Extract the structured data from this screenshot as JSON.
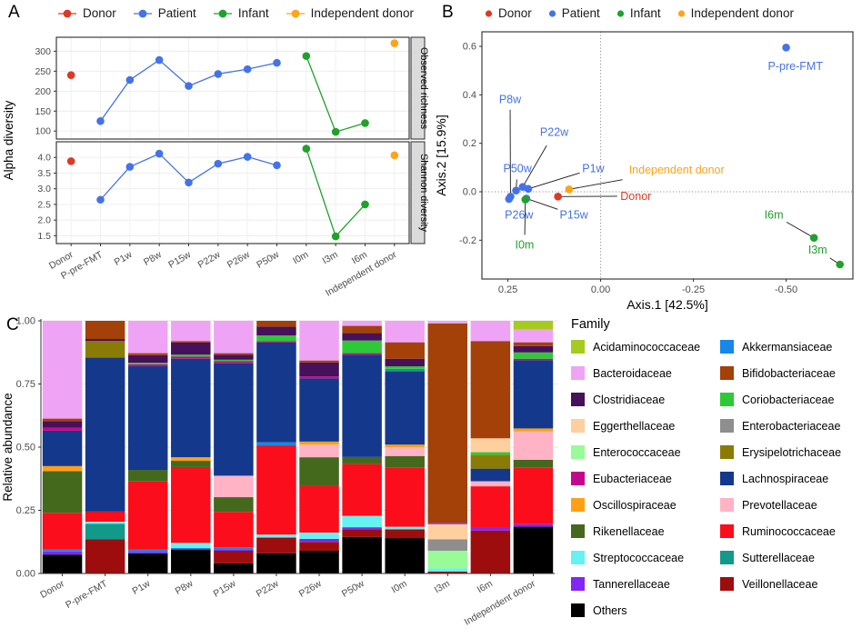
{
  "panels": {
    "a_label": "A",
    "b_label": "B",
    "c_label": "C"
  },
  "group_legend": {
    "items": [
      {
        "id": "donor",
        "label": "Donor",
        "color": "#DC3A23"
      },
      {
        "id": "patient",
        "label": "Patient",
        "color": "#4472E8"
      },
      {
        "id": "infant",
        "label": "Infant",
        "color": "#1FA22B"
      },
      {
        "id": "independent",
        "label": "Independent donor",
        "color": "#FFA317"
      }
    ]
  },
  "chart_data": [
    {
      "id": "alpha_diversity",
      "type": "line",
      "ylabel": "Alpha diversity",
      "categories": [
        "Donor",
        "P-pre-FMT",
        "P1w",
        "P8w",
        "P15w",
        "P22w",
        "P26w",
        "P50w",
        "I0m",
        "I3m",
        "I6m",
        "Independent donor"
      ],
      "groups": [
        "donor",
        "patient",
        "patient",
        "patient",
        "patient",
        "patient",
        "patient",
        "patient",
        "infant",
        "infant",
        "infant",
        "independent"
      ],
      "connect": [
        [
          1,
          7
        ],
        [
          8,
          10
        ]
      ],
      "facets": [
        {
          "label": "Observed richness",
          "ylim": [
            80,
            335
          ],
          "yticks": [
            100,
            150,
            200,
            250,
            300
          ],
          "ytick_labels": [
            "100",
            "150",
            "200",
            "250",
            "300"
          ],
          "values": [
            240,
            125,
            228,
            278,
            213,
            243,
            255,
            271,
            288,
            98,
            120,
            320
          ]
        },
        {
          "label": "Shannon diversity",
          "ylim": [
            1.25,
            4.5
          ],
          "yticks": [
            1.5,
            2.0,
            2.5,
            3.0,
            3.5,
            4.0
          ],
          "ytick_labels": [
            "1.5",
            "2.0",
            "2.5",
            "3.0",
            "3.5",
            "4.0"
          ],
          "values": [
            3.88,
            2.65,
            3.7,
            4.12,
            3.2,
            3.8,
            4.02,
            3.75,
            4.28,
            1.48,
            2.5,
            4.07
          ]
        }
      ]
    },
    {
      "id": "pcoa",
      "type": "scatter",
      "xlabel": "Axis.1 [42.5%]",
      "ylabel": "Axis.2 [15.9%]",
      "xlim": [
        0.32,
        -0.68
      ],
      "ylim": [
        -0.36,
        0.66
      ],
      "xticks": [
        0.25,
        0.0,
        -0.25,
        -0.5
      ],
      "xtick_labels": [
        "0.25",
        "0.00",
        "-0.25",
        "-0.50"
      ],
      "yticks": [
        -0.2,
        0.0,
        0.2,
        0.4,
        0.6
      ],
      "ytick_labels": [
        "-0.2",
        "0.0",
        "0.2",
        "0.4",
        "0.6"
      ],
      "refline_x": 0.0,
      "refline_y": 0.0,
      "points": [
        {
          "label": "Donor",
          "group": "donor",
          "x": 0.115,
          "y": -0.02,
          "tx": -0.095,
          "ty": -0.018
        },
        {
          "label": "P-pre-FMT",
          "group": "patient",
          "x": -0.5,
          "y": 0.595,
          "tx": -0.525,
          "ty": 0.517
        },
        {
          "label": "P1w",
          "group": "patient",
          "x": 0.195,
          "y": 0.012,
          "tx": 0.02,
          "ty": 0.095
        },
        {
          "label": "P8w",
          "group": "patient",
          "x": 0.243,
          "y": -0.02,
          "tx": 0.244,
          "ty": 0.38
        },
        {
          "label": "P15w",
          "group": "patient",
          "x": 0.2,
          "y": -0.028,
          "tx": 0.072,
          "ty": -0.095
        },
        {
          "label": "P22w",
          "group": "patient",
          "x": 0.21,
          "y": 0.02,
          "tx": 0.125,
          "ty": 0.245
        },
        {
          "label": "P26w",
          "group": "patient",
          "x": 0.247,
          "y": -0.03,
          "tx": 0.22,
          "ty": -0.095
        },
        {
          "label": "P50w",
          "group": "patient",
          "x": 0.228,
          "y": 0.005,
          "tx": 0.224,
          "ty": 0.095
        },
        {
          "label": "I0m",
          "group": "infant",
          "x": 0.203,
          "y": -0.032,
          "tx": 0.205,
          "ty": -0.22
        },
        {
          "label": "I3m",
          "group": "infant",
          "x": -0.645,
          "y": -0.3,
          "tx": -0.585,
          "ty": -0.24
        },
        {
          "label": "I6m",
          "group": "infant",
          "x": -0.575,
          "y": -0.19,
          "tx": -0.467,
          "ty": -0.095
        },
        {
          "label": "Independent donor",
          "group": "independent",
          "x": 0.085,
          "y": 0.01,
          "tx": -0.205,
          "ty": 0.09
        }
      ]
    },
    {
      "id": "relative_abundance",
      "type": "bar-stacked",
      "ylabel": "Relative abundance",
      "legend_title": "Family",
      "yticks": [
        0,
        0.25,
        0.5,
        0.75,
        1.0
      ],
      "ytick_labels": [
        "0.00",
        "0.25",
        "0.50",
        "0.75",
        "1.00"
      ],
      "categories": [
        "Donor",
        "P-pre-FMT",
        "P1w",
        "P8w",
        "P15w",
        "P22w",
        "P26w",
        "P50w",
        "I0m",
        "I3m",
        "I6m",
        "Independent donor"
      ],
      "families": [
        {
          "name": "Acidaminococcaceae",
          "color": "#A6CB1E"
        },
        {
          "name": "Akkermansiaceae",
          "color": "#1787E8"
        },
        {
          "name": "Bacteroidaceae",
          "color": "#EFA3F5"
        },
        {
          "name": "Bifidobacteriaceae",
          "color": "#A34108"
        },
        {
          "name": "Clostridiaceae",
          "color": "#46105A"
        },
        {
          "name": "Coriobacteriaceae",
          "color": "#2DC937"
        },
        {
          "name": "Eggerthellaceae",
          "color": "#FFCF9E"
        },
        {
          "name": "Enterobacteriaceae",
          "color": "#8E8E8E"
        },
        {
          "name": "Enterococcaceae",
          "color": "#98FB98"
        },
        {
          "name": "Erysipelotrichaceae",
          "color": "#8A7B06"
        },
        {
          "name": "Eubacteriaceae",
          "color": "#C4088E"
        },
        {
          "name": "Lachnospiraceae",
          "color": "#14388C"
        },
        {
          "name": "Oscillospiraceae",
          "color": "#FFA014"
        },
        {
          "name": "Prevotellaceae",
          "color": "#FFB3C4"
        },
        {
          "name": "Rikenellaceae",
          "color": "#44691D"
        },
        {
          "name": "Ruminococcaceae",
          "color": "#FB0D1B"
        },
        {
          "name": "Streptococcaceae",
          "color": "#64F2F2"
        },
        {
          "name": "Sutterellaceae",
          "color": "#12998A"
        },
        {
          "name": "Tannerellaceae",
          "color": "#8226F5"
        },
        {
          "name": "Veillonellaceae",
          "color": "#9E0D0D"
        },
        {
          "name": "Others",
          "color": "#000000"
        }
      ],
      "legend_columns": [
        [
          "Acidaminococcaceae",
          "Bacteroidaceae",
          "Clostridiaceae",
          "Eggerthellaceae",
          "Enterococcaceae",
          "Eubacteriaceae",
          "Oscillospiraceae",
          "Rikenellaceae",
          "Streptococcaceae",
          "Tannerellaceae",
          "Others"
        ],
        [
          "Akkermansiaceae",
          "Bifidobacteriaceae",
          "Coriobacteriaceae",
          "Enterobacteriaceae",
          "Erysipelotrichaceae",
          "Lachnospiraceae",
          "Prevotellaceae",
          "Ruminococcaceae",
          "Sutterellaceae",
          "Veillonellaceae"
        ]
      ],
      "bars": {
        "Donor": [
          [
            "Others",
            0.075
          ],
          [
            "Tannerellaceae",
            0.012
          ],
          [
            "Akkermansiaceae",
            0.008
          ],
          [
            "Ruminococcaceae",
            0.145
          ],
          [
            "Rikenellaceae",
            0.165
          ],
          [
            "Oscillospiraceae",
            0.02
          ],
          [
            "Lachnospiraceae",
            0.14
          ],
          [
            "Eubacteriaceae",
            0.012
          ],
          [
            "Clostridiaceae",
            0.026
          ],
          [
            "Bifidobacteriaceae",
            0.01
          ],
          [
            "Bacteroidaceae",
            0.387
          ]
        ],
        "P-pre-FMT": [
          [
            "Veillonellaceae",
            0.135
          ],
          [
            "Sutterellaceae",
            0.062
          ],
          [
            "Streptococcaceae",
            0.008
          ],
          [
            "Ruminococcaceae",
            0.04
          ],
          [
            "Lachnospiraceae",
            0.61
          ],
          [
            "Erysipelotrichaceae",
            0.065
          ],
          [
            "Clostridiaceae",
            0.008
          ],
          [
            "Bifidobacteriaceae",
            0.072
          ]
        ],
        "P1w": [
          [
            "Others",
            0.08
          ],
          [
            "Tannerellaceae",
            0.006
          ],
          [
            "Akkermansiaceae",
            0.008
          ],
          [
            "Ruminococcaceae",
            0.27
          ],
          [
            "Rikenellaceae",
            0.046
          ],
          [
            "Lachnospiraceae",
            0.41
          ],
          [
            "Eubacteriaceae",
            0.008
          ],
          [
            "Coriobacteriaceae",
            0.006
          ],
          [
            "Clostridiaceae",
            0.03
          ],
          [
            "Bifidobacteriaceae",
            0.008
          ],
          [
            "Bacteroidaceae",
            0.128
          ]
        ],
        "P8w": [
          [
            "Others",
            0.095
          ],
          [
            "Akkermansiaceae",
            0.006
          ],
          [
            "Streptococcaceae",
            0.02
          ],
          [
            "Ruminococcaceae",
            0.3
          ],
          [
            "Rikenellaceae",
            0.025
          ],
          [
            "Oscillospiraceae",
            0.014
          ],
          [
            "Lachnospiraceae",
            0.39
          ],
          [
            "Eubacteriaceae",
            0.008
          ],
          [
            "Coriobacteriaceae",
            0.008
          ],
          [
            "Clostridiaceae",
            0.048
          ],
          [
            "Bifidobacteriaceae",
            0.006
          ],
          [
            "Bacteroidaceae",
            0.08
          ]
        ],
        "P15w": [
          [
            "Others",
            0.04
          ],
          [
            "Veillonellaceae",
            0.05
          ],
          [
            "Tannerellaceae",
            0.006
          ],
          [
            "Akkermansiaceae",
            0.008
          ],
          [
            "Ruminococcaceae",
            0.14
          ],
          [
            "Rikenellaceae",
            0.058
          ],
          [
            "Prevotellaceae",
            0.085
          ],
          [
            "Lachnospiraceae",
            0.445
          ],
          [
            "Eubacteriaceae",
            0.008
          ],
          [
            "Coriobacteriaceae",
            0.006
          ],
          [
            "Clostridiaceae",
            0.02
          ],
          [
            "Bifidobacteriaceae",
            0.006
          ],
          [
            "Bacteroidaceae",
            0.128
          ]
        ],
        "P22w": [
          [
            "Others",
            0.08
          ],
          [
            "Veillonellaceae",
            0.062
          ],
          [
            "Streptococcaceae",
            0.012
          ],
          [
            "Ruminococcaceae",
            0.353
          ],
          [
            "Akkermansiaceae",
            0.012
          ],
          [
            "Lachnospiraceae",
            0.395
          ],
          [
            "Eubacteriaceae",
            0.006
          ],
          [
            "Coriobacteriaceae",
            0.022
          ],
          [
            "Clostridiaceae",
            0.035
          ],
          [
            "Bifidobacteriaceae",
            0.023
          ]
        ],
        "P26w": [
          [
            "Others",
            0.09
          ],
          [
            "Veillonellaceae",
            0.035
          ],
          [
            "Tannerellaceae",
            0.012
          ],
          [
            "Streptococcaceae",
            0.025
          ],
          [
            "Ruminococcaceae",
            0.185
          ],
          [
            "Rikenellaceae",
            0.113
          ],
          [
            "Prevotellaceae",
            0.05
          ],
          [
            "Oscillospiraceae",
            0.012
          ],
          [
            "Lachnospiraceae",
            0.25
          ],
          [
            "Eubacteriaceae",
            0.008
          ],
          [
            "Clostridiaceae",
            0.055
          ],
          [
            "Bifidobacteriaceae",
            0.008
          ],
          [
            "Bacteroidaceae",
            0.157
          ]
        ],
        "P50w": [
          [
            "Others",
            0.145
          ],
          [
            "Veillonellaceae",
            0.03
          ],
          [
            "Tannerellaceae",
            0.008
          ],
          [
            "Streptococcaceae",
            0.045
          ],
          [
            "Ruminococcaceae",
            0.205
          ],
          [
            "Rikenellaceae",
            0.028
          ],
          [
            "Lachnospiraceae",
            0.405
          ],
          [
            "Eubacteriaceae",
            0.006
          ],
          [
            "Coriobacteriaceae",
            0.05
          ],
          [
            "Clostridiaceae",
            0.03
          ],
          [
            "Bifidobacteriaceae",
            0.028
          ],
          [
            "Bacteroidaceae",
            0.02
          ]
        ],
        "I0m": [
          [
            "Others",
            0.14
          ],
          [
            "Veillonellaceae",
            0.035
          ],
          [
            "Streptococcaceae",
            0.01
          ],
          [
            "Ruminococcaceae",
            0.235
          ],
          [
            "Rikenellaceae",
            0.045
          ],
          [
            "Prevotellaceae",
            0.035
          ],
          [
            "Oscillospiraceae",
            0.01
          ],
          [
            "Lachnospiraceae",
            0.29
          ],
          [
            "Sutterellaceae",
            0.01
          ],
          [
            "Coriobacteriaceae",
            0.01
          ],
          [
            "Clostridiaceae",
            0.03
          ],
          [
            "Bifidobacteriaceae",
            0.065
          ],
          [
            "Bacteroidaceae",
            0.085
          ]
        ],
        "I3m": [
          [
            "Veillonellaceae",
            0.008
          ],
          [
            "Streptococcaceae",
            0.012
          ],
          [
            "Enterococcaceae",
            0.07
          ],
          [
            "Enterobacteriaceae",
            0.045
          ],
          [
            "Eggerthellaceae",
            0.06
          ],
          [
            "Tannerellaceae",
            0.005
          ],
          [
            "Bifidobacteriaceae",
            0.79
          ],
          [
            "Bacteroidaceae",
            0.01
          ]
        ],
        "I6m": [
          [
            "Veillonellaceae",
            0.17
          ],
          [
            "Tannerellaceae",
            0.01
          ],
          [
            "Ruminococcaceae",
            0.165
          ],
          [
            "Prevotellaceae",
            0.02
          ],
          [
            "Lachnospiraceae",
            0.05
          ],
          [
            "Erysipelotrichaceae",
            0.055
          ],
          [
            "Coriobacteriaceae",
            0.01
          ],
          [
            "Eggerthellaceae",
            0.055
          ],
          [
            "Bifidobacteriaceae",
            0.385
          ],
          [
            "Bacteroidaceae",
            0.08
          ]
        ],
        "Independent donor": [
          [
            "Others",
            0.185
          ],
          [
            "Tannerellaceae",
            0.01
          ],
          [
            "Ruminococcaceae",
            0.225
          ],
          [
            "Rikenellaceae",
            0.03
          ],
          [
            "Prevotellaceae",
            0.112
          ],
          [
            "Oscillospiraceae",
            0.012
          ],
          [
            "Lachnospiraceae",
            0.27
          ],
          [
            "Eubacteriaceae",
            0.006
          ],
          [
            "Coriobacteriaceae",
            0.025
          ],
          [
            "Clostridiaceae",
            0.025
          ],
          [
            "Bifidobacteriaceae",
            0.015
          ],
          [
            "Bacteroidaceae",
            0.05
          ],
          [
            "Acidaminococcaceae",
            0.035
          ]
        ]
      }
    }
  ]
}
